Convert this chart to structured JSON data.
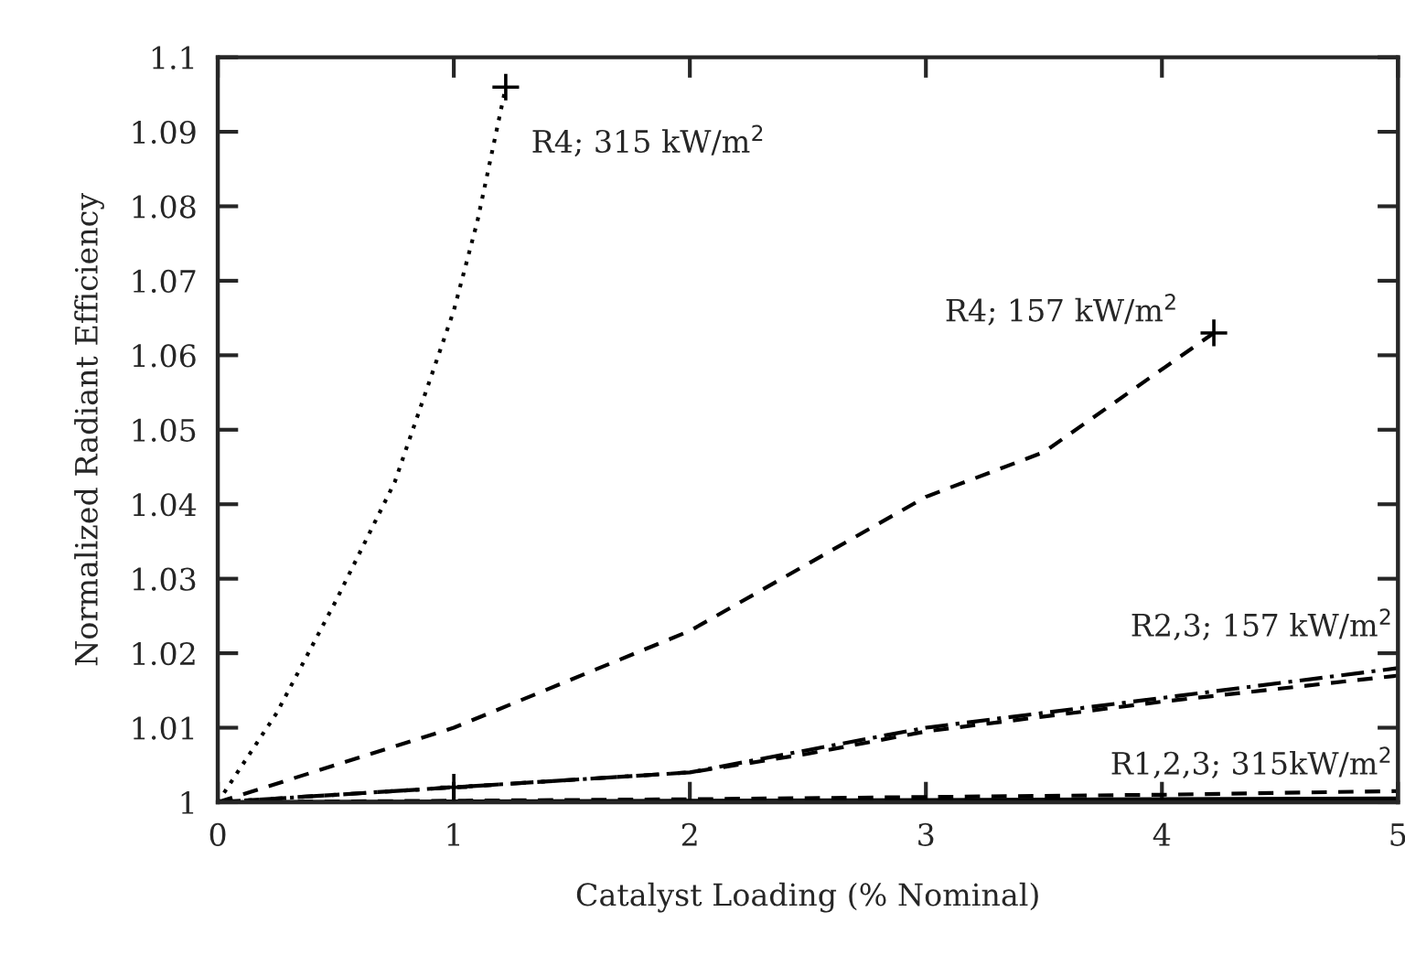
{
  "chart_data": {
    "type": "line",
    "xlabel": "Catalyst Loading (% Nominal)",
    "ylabel": "Normalized Radiant Efficiency",
    "xlim": [
      0,
      5
    ],
    "xticks": [
      0,
      1,
      2,
      3,
      4,
      5
    ],
    "ylim": [
      1,
      1.1
    ],
    "yticks": [
      1,
      1.01,
      1.02,
      1.03,
      1.04,
      1.05,
      1.06,
      1.07,
      1.08,
      1.09,
      1.1
    ],
    "grid": false,
    "legend": false,
    "series": [
      {
        "name": "R4; 315 kW/m$^{2}$",
        "color": "#000000",
        "line_style": "dotted",
        "x": [
          0,
          0.25,
          0.5,
          0.75,
          1.0,
          1.1,
          1.22
        ],
        "values": [
          1,
          1.012,
          1.027,
          1.043,
          1.066,
          1.078,
          1.096
        ]
      },
      {
        "name": "R4; 157 kW/m$^{2}$",
        "color": "#000000",
        "line_style": "dashed",
        "x": [
          0,
          1,
          2,
          3,
          3.5,
          4.22
        ],
        "values": [
          1,
          1.01,
          1.023,
          1.041,
          1.047,
          1.063
        ]
      },
      {
        "name": "R2,3; 157 kW/m$^{2}$",
        "color": "#000000",
        "line_style": "dashdot",
        "x": [
          0,
          1,
          2,
          2.5,
          3,
          4,
          5
        ],
        "values": [
          1,
          1.002,
          1.004,
          1.007,
          1.01,
          1.014,
          1.018
        ]
      },
      {
        "color": "#000000",
        "line_style": "dashed",
        "x": [
          0,
          1,
          2,
          2.5,
          3,
          4,
          5
        ],
        "values": [
          1,
          1.002,
          1.004,
          1.0065,
          1.0095,
          1.0135,
          1.017
        ]
      },
      {
        "name": "R1,2,3; 315kW/m$^{2}$",
        "color": "#000000",
        "line_style": "dashed",
        "x": [
          0,
          1,
          2,
          3,
          4,
          5
        ],
        "values": [
          1,
          1.0002,
          1.0004,
          1.0007,
          1.001,
          1.0015
        ]
      },
      {
        "color": "#000000",
        "line_style": "solid",
        "x": [
          0,
          1,
          2,
          3,
          4,
          5
        ],
        "values": [
          1,
          1.0001,
          1.0002,
          1.0003,
          1.0004,
          1.0005
        ]
      },
      {
        "type": "scatter",
        "color": "#000000",
        "marker": "cross",
        "x": [
          1.22,
          4.22,
          1
        ],
        "values": [
          1.096,
          1.063,
          1.002
        ]
      }
    ]
  }
}
